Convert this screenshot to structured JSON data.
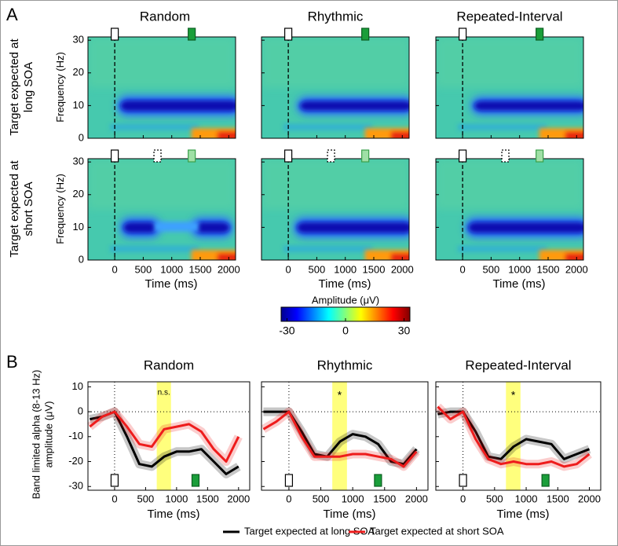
{
  "panel_labels": [
    "A",
    "B"
  ],
  "heatmap": {
    "type": "heatmap",
    "columns": [
      "Random",
      "Rhythmic",
      "Repeated-Interval"
    ],
    "rows": [
      "Target expected at long SOA",
      "Target expected at short SOA"
    ],
    "ylabel": "Frequency (Hz)",
    "xlabel": "Time (ms)",
    "xlim": [
      -470,
      2120
    ],
    "xticks": [
      0,
      500,
      1000,
      1500,
      2000
    ],
    "ylim": [
      0,
      31
    ],
    "yticks": [
      0,
      10,
      20,
      30
    ],
    "colorbar": {
      "label": "Amplitude (μV)",
      "lim": [
        -33,
        33
      ],
      "ticks": [
        -30,
        0,
        30
      ]
    }
  },
  "chart_data": [
    {
      "type": "line",
      "title": "Random",
      "xlabel": "Time (ms)",
      "ylabel": "Band limited alpha (8-13 Hz) amplitude (μV)",
      "x": [
        -400,
        -200,
        0,
        200,
        400,
        600,
        800,
        1000,
        1200,
        1400,
        1600,
        1800,
        2000
      ],
      "series": [
        {
          "name": "Target expected at long SOA",
          "color": "#000000",
          "values": [
            -3,
            -2,
            0,
            -10,
            -21,
            -22,
            -18,
            -16,
            -16,
            -15,
            -20,
            -25,
            -22
          ]
        },
        {
          "name": "Target expected at short SOA",
          "color": "#ee1c1c",
          "values": [
            -6,
            -2,
            0,
            -6,
            -13,
            -14,
            -7,
            -6,
            -5,
            -8,
            -15,
            -20,
            -10
          ]
        }
      ],
      "highlight": {
        "range": [
          680,
          910
        ],
        "label": "n.s."
      },
      "xlim": [
        -430,
        2180
      ],
      "xticks": [
        0,
        500,
        1000,
        1500,
        2000
      ],
      "ylim": [
        -31.5,
        12
      ],
      "yticks": [
        10,
        0,
        -10,
        -20,
        -30
      ]
    },
    {
      "type": "line",
      "title": "Rhythmic",
      "xlabel": "Time (ms)",
      "x": [
        -400,
        -200,
        0,
        200,
        400,
        600,
        800,
        1000,
        1200,
        1400,
        1600,
        1800,
        2000
      ],
      "series": [
        {
          "name": "Target expected at long SOA",
          "color": "#000000",
          "values": [
            0,
            0,
            0,
            -8,
            -17,
            -18,
            -12,
            -9,
            -10,
            -13,
            -20,
            -21,
            -15
          ]
        },
        {
          "name": "Target expected at short SOA",
          "color": "#ee1c1c",
          "values": [
            -7,
            -4,
            0,
            -10,
            -18,
            -18,
            -18,
            -17,
            -17,
            -18,
            -19,
            -22,
            -16
          ]
        }
      ],
      "highlight": {
        "range": [
          680,
          910
        ],
        "label": "*"
      },
      "xlim": [
        -430,
        2180
      ],
      "xticks": [
        0,
        500,
        1000,
        1500,
        2000
      ],
      "ylim": [
        -31.5,
        12
      ],
      "yticks": [
        10,
        0,
        -10,
        -20,
        -30
      ]
    },
    {
      "type": "line",
      "title": "Repeated-Interval",
      "xlabel": "Time (ms)",
      "x": [
        -400,
        -200,
        0,
        200,
        400,
        600,
        800,
        1000,
        1200,
        1400,
        1600,
        1800,
        2000
      ],
      "series": [
        {
          "name": "Target expected at long SOA",
          "color": "#000000",
          "values": [
            -1,
            0,
            0,
            -8,
            -18,
            -19,
            -14,
            -11,
            -12,
            -13,
            -19,
            -17,
            -15
          ]
        },
        {
          "name": "Target expected at short SOA",
          "color": "#ee1c1c",
          "values": [
            2,
            -3,
            0,
            -11,
            -19,
            -21,
            -20,
            -21,
            -21,
            -20,
            -22,
            -21,
            -17
          ]
        }
      ],
      "highlight": {
        "range": [
          680,
          910
        ],
        "label": "*"
      },
      "xlim": [
        -430,
        2180
      ],
      "xticks": [
        0,
        500,
        1000,
        1500,
        2000
      ],
      "ylim": [
        -31.5,
        12
      ],
      "yticks": [
        10,
        0,
        -10,
        -20,
        -30
      ]
    }
  ]
}
